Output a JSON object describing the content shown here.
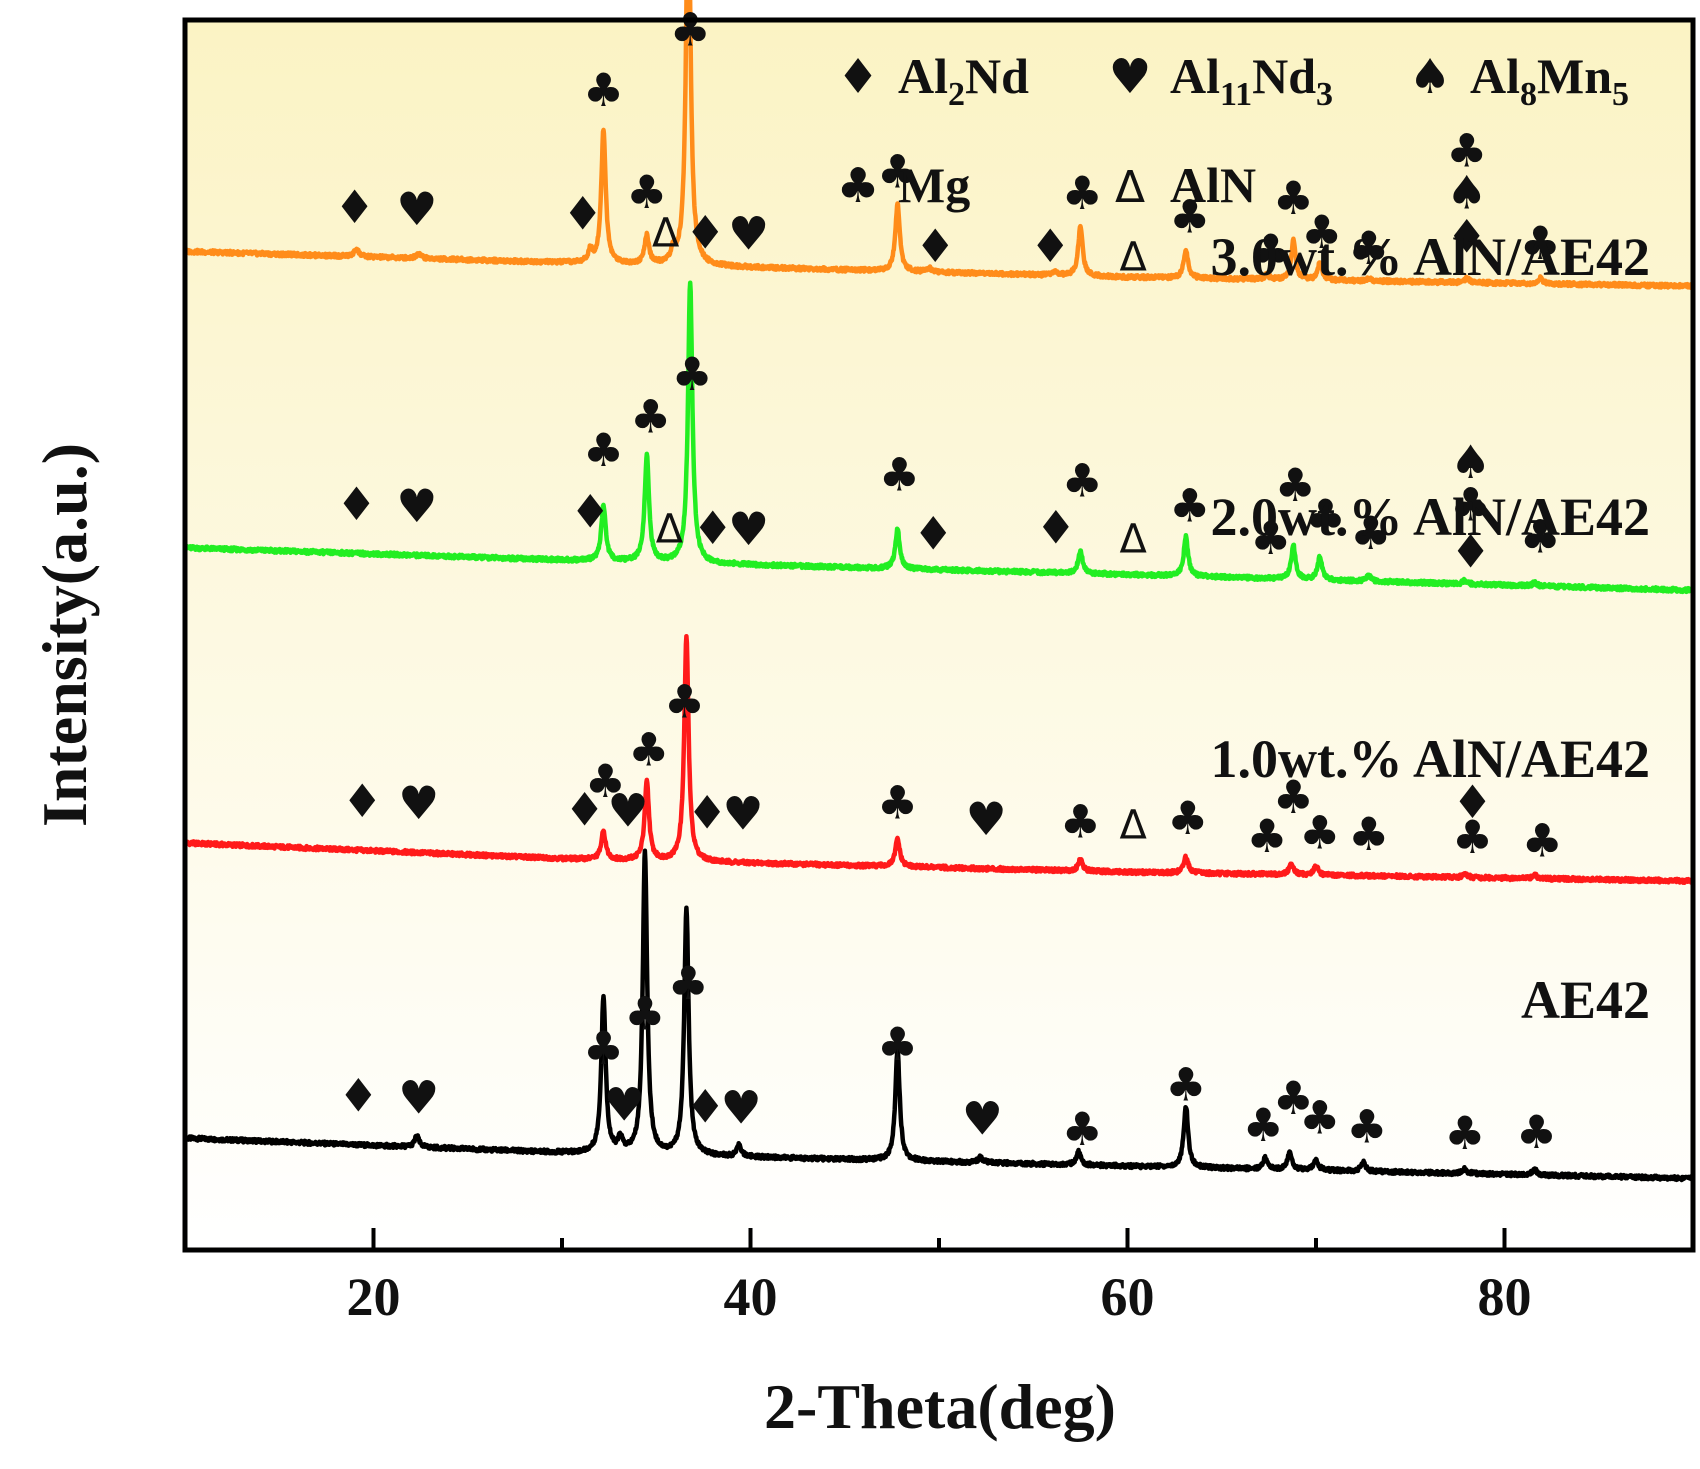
{
  "chart_data": {
    "type": "line",
    "title": "",
    "xlabel": "2-Theta(deg)",
    "ylabel": "Intensity(a.u.)",
    "xlim": [
      10,
      90
    ],
    "ylim": [
      0,
      110
    ],
    "x_ticks": [
      20,
      40,
      60,
      80
    ],
    "x_tick_labels": [
      "20",
      "40",
      "60",
      "80"
    ],
    "y_ticks_shown": false,
    "grid": false,
    "background_gradient": [
      "#fbf3c4",
      "#ffffff"
    ],
    "legend": {
      "position": "top-right",
      "entries": [
        {
          "symbol": "♦",
          "phase": "Al2Nd",
          "parts": [
            [
              "Al",
              "n"
            ],
            [
              "2",
              "sub"
            ],
            [
              "Nd",
              "n"
            ]
          ]
        },
        {
          "symbol": "♥",
          "phase": "Al11Nd3",
          "parts": [
            [
              "Al",
              "n"
            ],
            [
              "11",
              "sub"
            ],
            [
              "Nd",
              "n"
            ],
            [
              "3",
              "sub"
            ]
          ]
        },
        {
          "symbol": "♠",
          "phase": "Al8Mn5",
          "parts": [
            [
              "Al",
              "n"
            ],
            [
              "8",
              "sub"
            ],
            [
              "Mn",
              "n"
            ],
            [
              "5",
              "sub"
            ]
          ]
        },
        {
          "symbol": "♣",
          "phase": "Mg",
          "parts": [
            [
              "Mg",
              "n"
            ]
          ]
        },
        {
          "symbol": "Δ",
          "phase": "AlN",
          "parts": [
            [
              "AlN",
              "n"
            ]
          ]
        }
      ]
    },
    "series": [
      {
        "name": "AE42",
        "color": "#000000",
        "baseline": [
          [
            10,
            10.0
          ],
          [
            30,
            8.7
          ],
          [
            60,
            7.5
          ],
          [
            90,
            6.4
          ]
        ],
        "peaks": [
          [
            22.3,
            1.0
          ],
          [
            32.2,
            14.0
          ],
          [
            33.1,
            1.2
          ],
          [
            34.4,
            27.0
          ],
          [
            36.6,
            22.0
          ],
          [
            39.4,
            1.0
          ],
          [
            47.8,
            10.0
          ],
          [
            52.2,
            0.5
          ],
          [
            57.4,
            1.2
          ],
          [
            63.1,
            5.5
          ],
          [
            67.3,
            1.0
          ],
          [
            68.6,
            1.5
          ],
          [
            70.0,
            1.0
          ],
          [
            72.5,
            0.8
          ],
          [
            77.9,
            0.4
          ],
          [
            81.6,
            0.5
          ]
        ],
        "annotations": [
          [
            "♦",
            19.2,
            3.0
          ],
          [
            "♥",
            22.4,
            3.0
          ],
          [
            "♣",
            32.2,
            8.0
          ],
          [
            "♣",
            34.4,
            11.2
          ],
          [
            "♥",
            33.3,
            3.0
          ],
          [
            "♣",
            36.7,
            14.0
          ],
          [
            "♦",
            37.6,
            3.0
          ],
          [
            "♥",
            39.5,
            3.0
          ],
          [
            "♣",
            47.8,
            9.0
          ],
          [
            "♥",
            52.3,
            2.5
          ],
          [
            "♣",
            57.6,
            1.8
          ],
          [
            "♣",
            63.1,
            6.0
          ],
          [
            "♣",
            67.2,
            2.5
          ],
          [
            "♣",
            68.8,
            5.0
          ],
          [
            "♣",
            70.2,
            3.3
          ],
          [
            "♣",
            72.7,
            2.6
          ],
          [
            "♣",
            77.9,
            2.2
          ],
          [
            "♣",
            81.7,
            2.4
          ]
        ]
      },
      {
        "name": "1.0wt.% AlN/AE42",
        "color": "#ff1a1a",
        "baseline": [
          [
            10,
            36.4
          ],
          [
            30,
            35.0
          ],
          [
            60,
            33.8
          ],
          [
            90,
            33.0
          ]
        ],
        "peaks": [
          [
            32.2,
            2.5
          ],
          [
            34.5,
            7.0
          ],
          [
            36.6,
            20.0
          ],
          [
            47.8,
            2.5
          ],
          [
            57.5,
            1.0
          ],
          [
            63.1,
            1.5
          ],
          [
            68.7,
            1.0
          ],
          [
            70.0,
            0.8
          ],
          [
            77.9,
            0.3
          ],
          [
            81.6,
            0.3
          ]
        ],
        "annotations": [
          [
            "♦",
            19.4,
            3.0
          ],
          [
            "♥",
            22.4,
            3.0
          ],
          [
            "♣",
            32.3,
            5.6
          ],
          [
            "♦",
            31.2,
            3.0
          ],
          [
            "♥",
            33.5,
            3.0
          ],
          [
            "♣",
            34.6,
            8.5
          ],
          [
            "♣",
            36.5,
            12.9
          ],
          [
            "♦",
            37.7,
            3.0
          ],
          [
            "♥",
            39.6,
            3.0
          ],
          [
            "♣",
            47.8,
            4.3
          ],
          [
            "♥",
            52.5,
            3.0
          ],
          [
            "♣",
            57.5,
            3.0
          ],
          [
            "Δ",
            60.3,
            3.0
          ],
          [
            "♣",
            63.2,
            3.5
          ],
          [
            "♣",
            67.4,
            2.0
          ],
          [
            "♣",
            68.8,
            5.5
          ],
          [
            "♣",
            70.2,
            2.4
          ],
          [
            "♣",
            72.8,
            2.3
          ],
          [
            "♦",
            78.3,
            5.3
          ],
          [
            "♣",
            78.3,
            2.2
          ],
          [
            "♣",
            82.0,
            2.0
          ]
        ]
      },
      {
        "name": "2.0wt.% AlN/AE42",
        "color": "#22ee22",
        "baseline": [
          [
            10,
            62.8
          ],
          [
            30,
            61.7
          ],
          [
            60,
            60.4
          ],
          [
            90,
            59.0
          ]
        ],
        "peaks": [
          [
            32.2,
            5.0
          ],
          [
            34.5,
            9.5
          ],
          [
            36.8,
            25.0
          ],
          [
            47.8,
            3.5
          ],
          [
            57.5,
            2.0
          ],
          [
            63.1,
            3.5
          ],
          [
            68.8,
            3.0
          ],
          [
            70.2,
            2.0
          ],
          [
            72.8,
            0.5
          ],
          [
            77.9,
            0.3
          ],
          [
            81.6,
            0.3
          ]
        ],
        "annotations": [
          [
            "♦",
            19.1,
            3.0
          ],
          [
            "♥",
            22.3,
            3.0
          ],
          [
            "♣",
            32.2,
            8.5
          ],
          [
            "♦",
            31.5,
            3.0
          ],
          [
            "♣",
            34.7,
            11.6
          ],
          [
            "Δ",
            35.7,
            1.8
          ],
          [
            "♣",
            36.9,
            15.5
          ],
          [
            "♦",
            38.0,
            1.8
          ],
          [
            "♥",
            39.9,
            1.8
          ],
          [
            "♣",
            47.9,
            7.0
          ],
          [
            "♦",
            49.7,
            1.8
          ],
          [
            "♦",
            56.2,
            2.6
          ],
          [
            "♣",
            57.6,
            6.9
          ],
          [
            "Δ",
            60.3,
            2.0
          ],
          [
            "♣",
            63.3,
            4.9
          ],
          [
            "♣",
            67.6,
            2.2
          ],
          [
            "♣",
            68.9,
            7.0
          ],
          [
            "♣",
            70.5,
            4.3
          ],
          [
            "♣",
            72.9,
            2.9
          ],
          [
            "♠",
            78.2,
            9.5
          ],
          [
            "♣",
            78.2,
            5.7
          ],
          [
            "♦",
            78.2,
            1.5
          ],
          [
            "♣",
            81.9,
            3.0
          ]
        ]
      },
      {
        "name": "3.0wt.% AlN/AE42",
        "color": "#ff8c1a",
        "baseline": [
          [
            10,
            89.3
          ],
          [
            30,
            88.3
          ],
          [
            60,
            87.0
          ],
          [
            90,
            86.2
          ]
        ],
        "peaks": [
          [
            19.1,
            0.7
          ],
          [
            22.4,
            0.5
          ],
          [
            31.5,
            1.0
          ],
          [
            32.2,
            12.0
          ],
          [
            34.5,
            2.5
          ],
          [
            35.9,
            1.0
          ],
          [
            36.7,
            35.0
          ],
          [
            47.8,
            6.0
          ],
          [
            49.5,
            0.3
          ],
          [
            56.2,
            0.3
          ],
          [
            57.5,
            4.5
          ],
          [
            63.1,
            2.5
          ],
          [
            67.4,
            0.4
          ],
          [
            68.8,
            3.5
          ],
          [
            70.2,
            1.5
          ],
          [
            72.8,
            0.2
          ],
          [
            78.0,
            0.4
          ],
          [
            81.9,
            0.5
          ]
        ],
        "annotations": [
          [
            "♦",
            19.0,
            3.0
          ],
          [
            "♥",
            22.3,
            3.0
          ],
          [
            "♦",
            31.1,
            3.0
          ],
          [
            "♣",
            32.2,
            14.1
          ],
          [
            "♣",
            34.5,
            5.1
          ],
          [
            "Δ",
            35.5,
            1.7
          ],
          [
            "♣",
            36.8,
            19.7
          ],
          [
            "♦",
            37.6,
            1.6
          ],
          [
            "♥",
            39.9,
            1.6
          ],
          [
            "♣",
            47.8,
            7.5
          ],
          [
            "♦",
            49.8,
            0.9
          ],
          [
            "♦",
            55.9,
            1.2
          ],
          [
            "♣",
            57.6,
            6.0
          ],
          [
            "Δ",
            60.3,
            0.6
          ],
          [
            "♣",
            63.3,
            4.1
          ],
          [
            "♣",
            67.6,
            1.1
          ],
          [
            "♣",
            68.8,
            5.9
          ],
          [
            "♣",
            70.3,
            2.9
          ],
          [
            "♣",
            72.8,
            1.5
          ],
          [
            "♣",
            78.0,
            10.4
          ],
          [
            "♠",
            78.0,
            6.6
          ],
          [
            "♦",
            78.0,
            2.7
          ],
          [
            "♣",
            81.9,
            2.2
          ]
        ]
      }
    ]
  }
}
